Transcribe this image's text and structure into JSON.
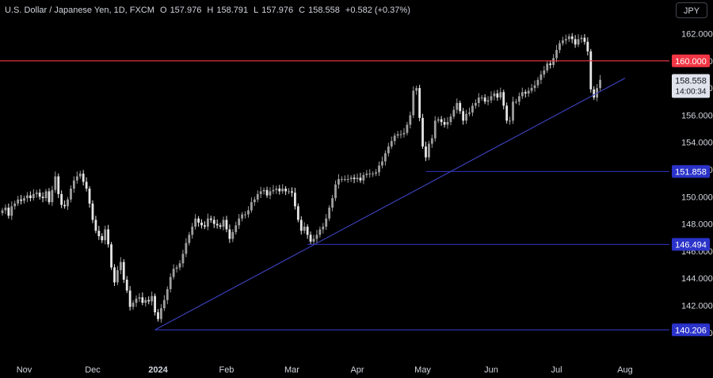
{
  "legend": {
    "symbol": "U.S. Dollar / Japanese Yen, 1D, FXCM",
    "open_label": "O",
    "open": "157.976",
    "high_label": "H",
    "high": "158.791",
    "low_label": "L",
    "low": "157.976",
    "close_label": "C",
    "close": "158.558",
    "change": "+0.582 (+0.37%)"
  },
  "currency_button": "JPY",
  "colors": {
    "background": "#000000",
    "candle_up": "#9e9e9e",
    "candle_down": "#e6e6e6",
    "horizontal_line": "#2b2fa8",
    "trendline": "#3a3fb5",
    "resistance": "#f23645",
    "label_blue": "#2b33c9",
    "label_red": "#f23645",
    "axis_text": "#d1d4dc"
  },
  "chart_data": {
    "type": "candlestick",
    "ylim": [
      139.5,
      163.0
    ],
    "y_ticks": [
      "162.000",
      "160.000",
      "158.000",
      "156.000",
      "154.000",
      "152.000",
      "150.000",
      "148.000",
      "146.000",
      "144.000",
      "142.000",
      "140.000"
    ],
    "x_ticks": [
      "Nov",
      "Dec",
      "2024",
      "Feb",
      "Mar",
      "Apr",
      "May",
      "Jun",
      "Jul",
      "Aug"
    ],
    "x_tick_index": [
      7,
      29,
      50,
      72,
      93,
      114,
      135,
      157,
      178,
      200
    ],
    "n_slots": 212,
    "closes": [
      149.0,
      149.2,
      148.6,
      149.3,
      149.5,
      149.8,
      149.7,
      149.9,
      150.1,
      149.9,
      150.2,
      150.3,
      150.0,
      149.9,
      150.4,
      149.6,
      150.5,
      151.5,
      150.2,
      149.4,
      149.3,
      149.8,
      150.6,
      151.2,
      151.5,
      151.7,
      151.1,
      150.6,
      149.5,
      148.3,
      147.5,
      147.1,
      146.8,
      147.6,
      146.5,
      144.8,
      143.7,
      144.6,
      145.2,
      143.9,
      143.1,
      141.9,
      142.2,
      142.5,
      142.6,
      142.2,
      142.4,
      142.3,
      142.7,
      141.5,
      141.0,
      141.8,
      142.4,
      143.2,
      144.1,
      144.7,
      144.8,
      145.1,
      145.8,
      146.6,
      147.2,
      147.8,
      148.4,
      148.1,
      147.9,
      147.8,
      148.4,
      148.3,
      148.0,
      147.9,
      147.8,
      148.3,
      147.6,
      146.9,
      147.4,
      147.9,
      148.4,
      148.7,
      148.7,
      149.0,
      149.6,
      149.8,
      150.2,
      150.4,
      150.5,
      150.1,
      150.4,
      150.5,
      150.6,
      150.4,
      150.6,
      150.4,
      150.4,
      150.3,
      149.3,
      148.3,
      147.5,
      147.8,
      147.2,
      146.7,
      146.9,
      147.2,
      147.6,
      147.8,
      148.4,
      149.2,
      149.9,
      150.9,
      151.3,
      151.3,
      151.3,
      151.3,
      151.4,
      151.3,
      151.4,
      151.2,
      151.6,
      151.7,
      151.7,
      151.7,
      151.8,
      152.3,
      152.6,
      153.2,
      153.7,
      154.1,
      154.5,
      154.6,
      154.6,
      154.7,
      155.3,
      156.0,
      157.8,
      158.0,
      155.8,
      153.7,
      152.9,
      153.9,
      154.3,
      155.6,
      155.7,
      155.5,
      155.3,
      155.5,
      155.9,
      156.4,
      156.9,
      156.3,
      155.6,
      156.1,
      156.2,
      156.7,
      156.9,
      157.3,
      157.3,
      157.0,
      157.1,
      157.4,
      157.6,
      157.3,
      157.7,
      156.7,
      155.6,
      155.6,
      157.0,
      157.0,
      157.4,
      157.7,
      157.6,
      157.8,
      158.0,
      158.2,
      158.6,
      159.0,
      159.3,
      159.8,
      159.7,
      160.2,
      160.8,
      161.3,
      161.5,
      161.6,
      161.8,
      161.6,
      161.2,
      161.6,
      161.7,
      161.4,
      160.7,
      157.9,
      157.3,
      158.0,
      158.6
    ]
  },
  "levels": {
    "resistance": {
      "value": 160.0,
      "label": "160.000"
    },
    "supports": [
      {
        "value": 151.858,
        "label": "151.858",
        "start_index": 136
      },
      {
        "value": 146.494,
        "label": "146.494",
        "start_index": 98
      },
      {
        "value": 140.206,
        "label": "140.206",
        "start_index": 49
      }
    ],
    "trendline": {
      "start_index": 49,
      "start_value": 140.206,
      "end_index": 200,
      "end_value": 158.73
    }
  },
  "last_price": {
    "value": 158.558,
    "label": "158.558",
    "countdown": "14:00:34"
  }
}
